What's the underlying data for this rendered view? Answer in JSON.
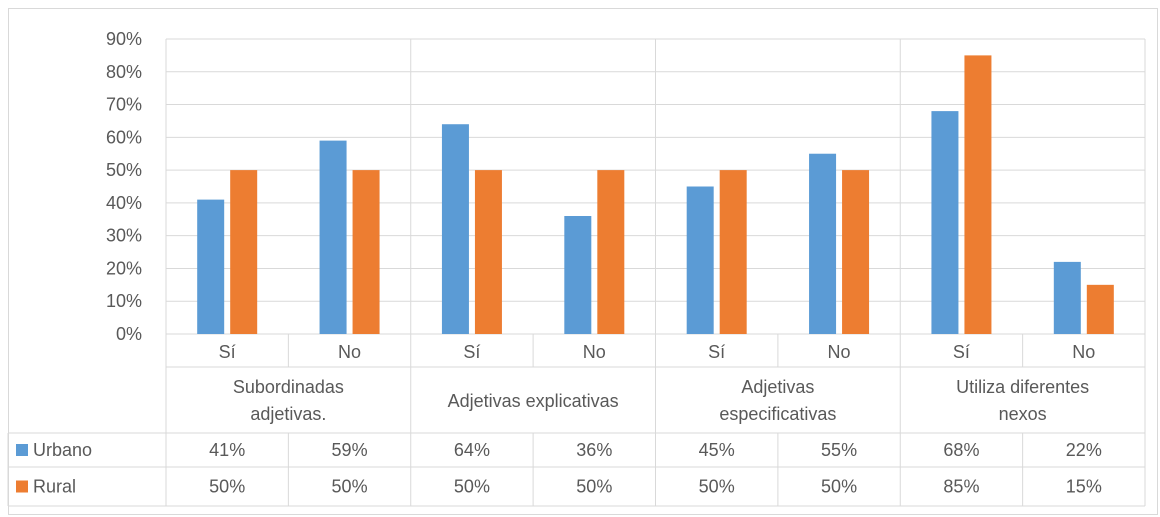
{
  "chart_data": {
    "type": "bar",
    "y_ticks": [
      "0%",
      "10%",
      "20%",
      "30%",
      "40%",
      "50%",
      "60%",
      "70%",
      "80%",
      "90%"
    ],
    "ylim": [
      0,
      90
    ],
    "groups": [
      {
        "label_lines": [
          "Subordinadas",
          "adjetivas."
        ],
        "categories": [
          "Sí",
          "No"
        ]
      },
      {
        "label_lines": [
          "Adjetivas explicativas"
        ],
        "categories": [
          "Sí",
          "No"
        ]
      },
      {
        "label_lines": [
          "Adjetivas",
          "especificativas"
        ],
        "categories": [
          "Sí",
          "No"
        ]
      },
      {
        "label_lines": [
          "Utiliza diferentes",
          "nexos"
        ],
        "categories": [
          "Sí",
          "No"
        ]
      }
    ],
    "series": [
      {
        "name": "Urbano",
        "color": "#5b9bd5",
        "values": [
          41,
          59,
          64,
          36,
          45,
          55,
          68,
          22
        ],
        "labels": [
          "41%",
          "59%",
          "64%",
          "36%",
          "45%",
          "55%",
          "68%",
          "22%"
        ]
      },
      {
        "name": "Rural",
        "color": "#ed7d31",
        "values": [
          50,
          50,
          50,
          50,
          50,
          50,
          85,
          15
        ],
        "labels": [
          "50%",
          "50%",
          "50%",
          "50%",
          "50%",
          "50%",
          "85%",
          "15%"
        ]
      }
    ],
    "grid": true,
    "legend": "data-table"
  }
}
